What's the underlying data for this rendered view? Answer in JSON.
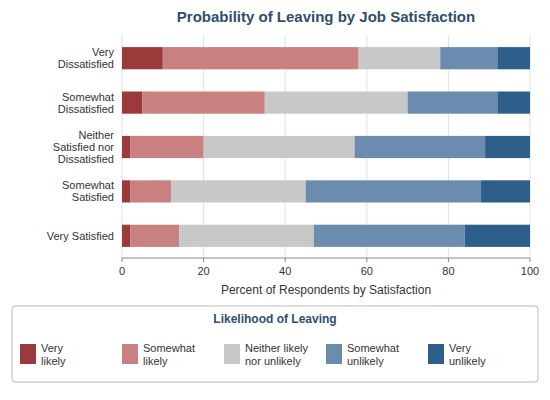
{
  "chart_data": {
    "type": "bar",
    "orientation": "horizontal",
    "stacked": true,
    "title": "Probability of Leaving by Job Satisfaction",
    "x_label": "Percent of Respondents by Satisfaction",
    "categories": [
      "Very\nDissatisfied",
      "Somewhat\nDissatisfied",
      "Neither\nSatisfied nor\nDissatisfied",
      "Somewhat\nSatisfied",
      "Very Satisfied"
    ],
    "series": [
      {
        "name": "Very\nlikely",
        "color": "#9b3a3a",
        "values": [
          10,
          5,
          2,
          2,
          2
        ]
      },
      {
        "name": "Somewhat\nlikely",
        "color": "#c98080",
        "values": [
          48,
          30,
          18,
          10,
          12
        ]
      },
      {
        "name": "Neither likely\nnor unlikely",
        "color": "#c8c8c8",
        "values": [
          20,
          35,
          37,
          33,
          33
        ]
      },
      {
        "name": "Somewhat\nunlikely",
        "color": "#6b8cae",
        "values": [
          14,
          22,
          32,
          43,
          37
        ]
      },
      {
        "name": "Very\nunlikely",
        "color": "#2e5f8a",
        "values": [
          8,
          8,
          11,
          12,
          16
        ]
      }
    ],
    "legend_title": "Likelihood of Leaving",
    "legend": "bottom",
    "xlim": [
      0,
      100
    ],
    "xticks": [
      0,
      20,
      40,
      60,
      80,
      100
    ],
    "grid": true
  }
}
